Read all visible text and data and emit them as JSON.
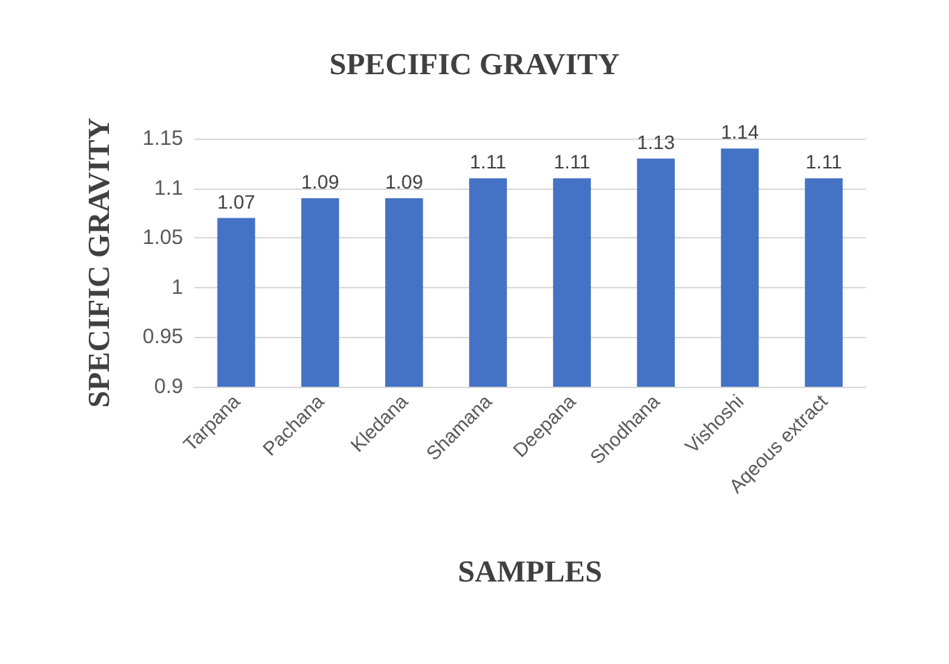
{
  "chart_data": {
    "type": "bar",
    "title": "SPECIFIC GRAVITY",
    "xlabel": "SAMPLES",
    "ylabel": "SPECIFIC GRAVITY",
    "categories": [
      "Tarpana",
      "Pachana",
      "Kledana",
      "Shamana",
      "Deepana",
      "Shodhana",
      "Vishoshi",
      "Aqeous extract"
    ],
    "values": [
      1.07,
      1.09,
      1.09,
      1.11,
      1.11,
      1.13,
      1.14,
      1.11
    ],
    "data_labels": true,
    "color": "#4472c4",
    "ylim": [
      0.9,
      1.15
    ],
    "yticks": [
      0.9,
      0.95,
      1,
      1.05,
      1.1,
      1.15
    ],
    "grid": "y"
  }
}
